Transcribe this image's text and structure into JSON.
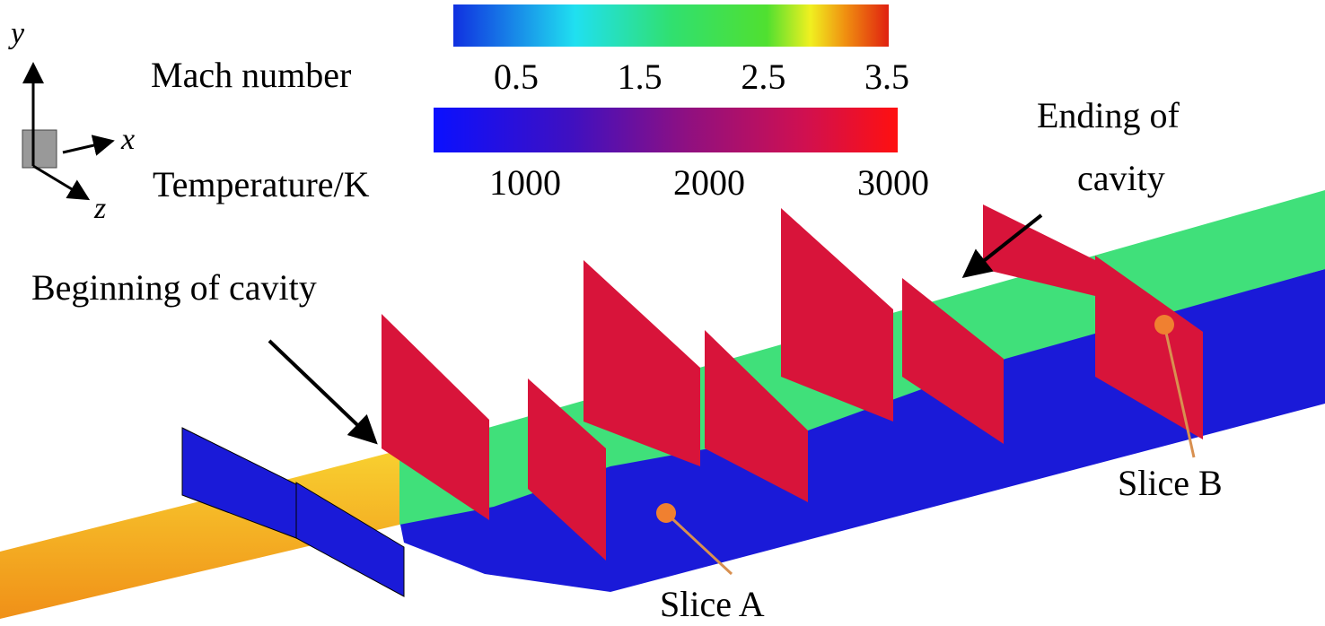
{
  "axes": {
    "y": "y",
    "x": "x",
    "z": "z"
  },
  "mach": {
    "label": "Mach number",
    "ticks": [
      "0.5",
      "1.5",
      "2.5",
      "3.5"
    ]
  },
  "temperature": {
    "label": "Temperature/K",
    "ticks": [
      "1000",
      "2000",
      "3000"
    ]
  },
  "annotations": {
    "beginning": "Beginning of cavity",
    "ending": [
      "Ending of",
      "cavity"
    ],
    "slice_a": "Slice A",
    "slice_b": "Slice B"
  }
}
